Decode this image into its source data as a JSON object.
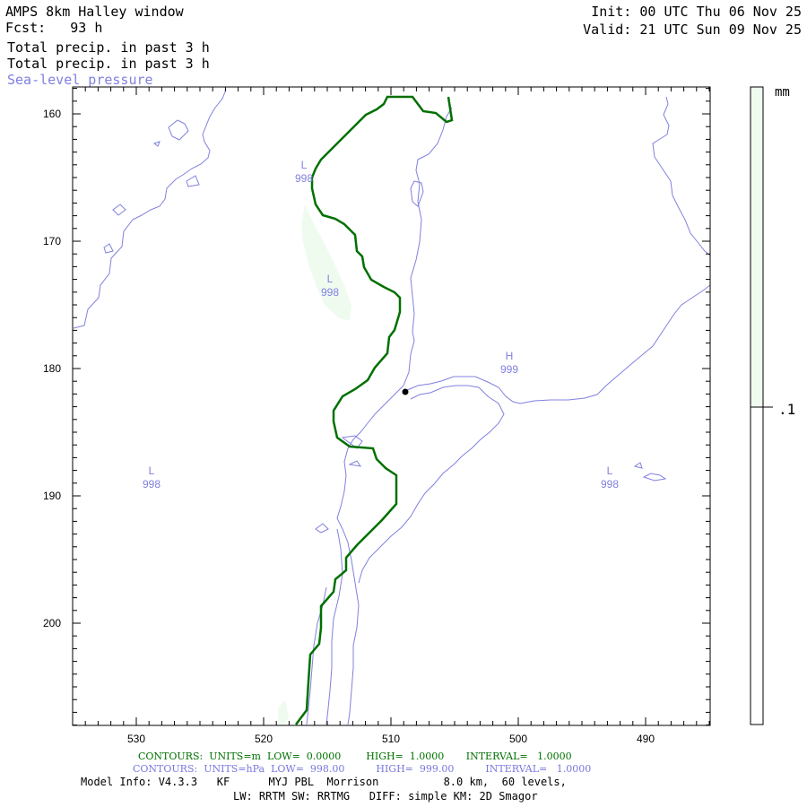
{
  "header": {
    "title": "AMPS 8km Halley window",
    "fcst": "Fcst:   93 h",
    "field1": "Total precip. in past 3 h",
    "field2": "Total precip. in past 3 h",
    "field3": "Sea-level pressure",
    "init": "Init: 00 UTC Thu 06 Nov 25",
    "valid": "Valid: 21 UTC Sun 09 Nov 25"
  },
  "axes": {
    "x_ticks": [
      "530",
      "520",
      "510",
      "500",
      "490"
    ],
    "y_ticks": [
      "160",
      "170",
      "180",
      "190",
      "200"
    ]
  },
  "pressure_centers": [
    {
      "type": "L",
      "value": "998"
    },
    {
      "type": "L",
      "value": "998"
    },
    {
      "type": "H",
      "value": "999"
    },
    {
      "type": "L",
      "value": "998"
    },
    {
      "type": "L",
      "value": "998"
    }
  ],
  "colorbar": {
    "unit": "mm",
    "label": ".1"
  },
  "footer": {
    "contours_green": "CONTOURS:  UNITS=m  LOW=  0.0000        HIGH=  1.0000       INTERVAL=   1.0000",
    "contours_blue": "CONTOURS:  UNITS=hPa  LOW=  998.00          HIGH=  999.00          INTERVAL=   1.0000",
    "model_info": "Model Info: V4.3.3   KF      MYJ PBL  Morrison          8.0 km,  60 levels,",
    "model_info2": "LW: RRTM SW: RRTMG   DIFF: simple KM: 2D Smagor"
  },
  "colors": {
    "green_contour": "#007000",
    "pressure_contour": "#8080e0",
    "precip_fill": "#f0fbf0"
  }
}
